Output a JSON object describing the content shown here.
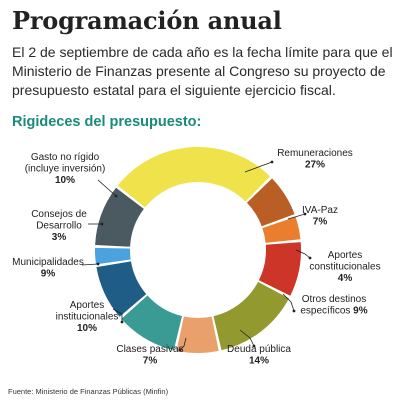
{
  "header": {
    "title": "Programación anual",
    "intro": "El 2 de septiembre de cada año es la fecha límite para que el Ministerio de Finanzas presente al Congreso su proyecto de presupuesto estatal para el siguiente ejercicio fiscal.",
    "subtitle": "Rigideces del presupuesto:"
  },
  "source": "Fuente: Ministerio de Finanzas Públicas (Minfin)",
  "chart_data": {
    "type": "pie",
    "variant": "donut",
    "title": "Rigideces del presupuesto:",
    "unit": "%",
    "slices": [
      {
        "label": [
          "Remuneraciones"
        ],
        "pct_label": "27%",
        "value": 27,
        "color": "#efe24a"
      },
      {
        "label": [
          "IVA-Paz"
        ],
        "pct_label": "7%",
        "value": 7,
        "color": "#b95e24"
      },
      {
        "label": [
          "Aportes",
          "constitucionales"
        ],
        "pct_label": "4%",
        "value": 4,
        "color": "#e97f2e"
      },
      {
        "label": [
          "Otros destinos",
          "específicos"
        ],
        "pct_label": "9%",
        "value": 9,
        "color": "#cc3527"
      },
      {
        "label": [
          "Deuda pública"
        ],
        "pct_label": "14%",
        "value": 14,
        "color": "#92992f"
      },
      {
        "label": [
          "Clases pasivas"
        ],
        "pct_label": "7%",
        "value": 7,
        "color": "#e9a06b"
      },
      {
        "label": [
          "Aportes",
          "institucionales"
        ],
        "pct_label": "10%",
        "value": 10,
        "color": "#3a9b94"
      },
      {
        "label": [
          "Municipalidades"
        ],
        "pct_label": "9%",
        "value": 9,
        "color": "#1f5c86"
      },
      {
        "label": [
          "Consejos de",
          "Desarrollo"
        ],
        "pct_label": "3%",
        "value": 3,
        "color": "#4aa3df"
      },
      {
        "label": [
          "Gasto no rígido",
          "(incluye inversión)"
        ],
        "pct_label": "10%",
        "value": 10,
        "color": "#4b5a60"
      }
    ]
  }
}
